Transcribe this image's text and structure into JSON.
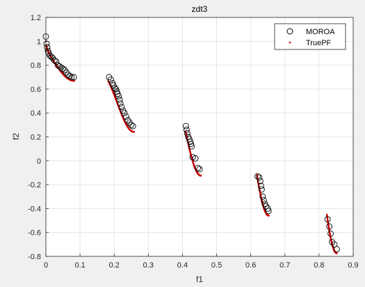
{
  "chart_data": {
    "type": "scatter",
    "title": "zdt3",
    "xlabel": "f1",
    "ylabel": "f2",
    "xlim": [
      0,
      0.9
    ],
    "ylim": [
      -0.8,
      1.2
    ],
    "xticks": [
      0,
      0.1,
      0.2,
      0.3,
      0.4,
      0.5,
      0.6,
      0.7,
      0.8,
      0.9
    ],
    "yticks": [
      -0.8,
      -0.6,
      -0.4,
      -0.2,
      0,
      0.2,
      0.4,
      0.6,
      0.8,
      1,
      1.2
    ],
    "xtick_labels": [
      "0",
      "0.1",
      "0.2",
      "0.3",
      "0.4",
      "0.5",
      "0.6",
      "0.7",
      "0.8",
      "0.9"
    ],
    "ytick_labels": [
      "-0.8",
      "-0.6",
      "-0.4",
      "-0.2",
      "0",
      "0.2",
      "0.4",
      "0.6",
      "0.8",
      "1",
      "1.2"
    ],
    "grid": true,
    "legend_position": "top-right",
    "series": [
      {
        "name": "MOROA",
        "marker": "circle",
        "color": "#000000",
        "points": [
          [
            0.0,
            1.04
          ],
          [
            0.002,
            0.98
          ],
          [
            0.004,
            0.95
          ],
          [
            0.006,
            0.92
          ],
          [
            0.008,
            0.9
          ],
          [
            0.012,
            0.88
          ],
          [
            0.016,
            0.87
          ],
          [
            0.02,
            0.86
          ],
          [
            0.025,
            0.84
          ],
          [
            0.03,
            0.83
          ],
          [
            0.035,
            0.8
          ],
          [
            0.04,
            0.79
          ],
          [
            0.045,
            0.78
          ],
          [
            0.05,
            0.77
          ],
          [
            0.055,
            0.76
          ],
          [
            0.06,
            0.74
          ],
          [
            0.065,
            0.72
          ],
          [
            0.07,
            0.71
          ],
          [
            0.075,
            0.7
          ],
          [
            0.082,
            0.7
          ],
          [
            0.185,
            0.7
          ],
          [
            0.19,
            0.68
          ],
          [
            0.195,
            0.65
          ],
          [
            0.198,
            0.63
          ],
          [
            0.202,
            0.61
          ],
          [
            0.205,
            0.6
          ],
          [
            0.208,
            0.58
          ],
          [
            0.21,
            0.56
          ],
          [
            0.213,
            0.54
          ],
          [
            0.216,
            0.51
          ],
          [
            0.218,
            0.48
          ],
          [
            0.222,
            0.45
          ],
          [
            0.226,
            0.42
          ],
          [
            0.23,
            0.4
          ],
          [
            0.235,
            0.37
          ],
          [
            0.24,
            0.34
          ],
          [
            0.245,
            0.32
          ],
          [
            0.25,
            0.3
          ],
          [
            0.255,
            0.29
          ],
          [
            0.41,
            0.29
          ],
          [
            0.412,
            0.26
          ],
          [
            0.414,
            0.23
          ],
          [
            0.417,
            0.2
          ],
          [
            0.42,
            0.18
          ],
          [
            0.423,
            0.16
          ],
          [
            0.425,
            0.14
          ],
          [
            0.427,
            0.12
          ],
          [
            0.43,
            0.03
          ],
          [
            0.438,
            0.02
          ],
          [
            0.445,
            -0.06
          ],
          [
            0.45,
            -0.07
          ],
          [
            0.62,
            -0.13
          ],
          [
            0.625,
            -0.14
          ],
          [
            0.628,
            -0.17
          ],
          [
            0.63,
            -0.21
          ],
          [
            0.632,
            -0.24
          ],
          [
            0.635,
            -0.3
          ],
          [
            0.638,
            -0.33
          ],
          [
            0.641,
            -0.36
          ],
          [
            0.645,
            -0.38
          ],
          [
            0.65,
            -0.4
          ],
          [
            0.652,
            -0.42
          ],
          [
            0.825,
            -0.49
          ],
          [
            0.83,
            -0.55
          ],
          [
            0.834,
            -0.61
          ],
          [
            0.838,
            -0.68
          ],
          [
            0.845,
            -0.7
          ],
          [
            0.852,
            -0.74
          ]
        ]
      },
      {
        "name": "TruePF",
        "marker": "dot",
        "color": "#cc0000",
        "segments": [
          [
            0.0,
            0.083
          ],
          [
            0.183,
            0.258
          ],
          [
            0.409,
            0.454
          ],
          [
            0.618,
            0.653
          ],
          [
            0.823,
            0.852
          ]
        ],
        "function": "f2 = 1 - sqrt(f1) - f1*sin(10*pi*f1)"
      }
    ]
  }
}
